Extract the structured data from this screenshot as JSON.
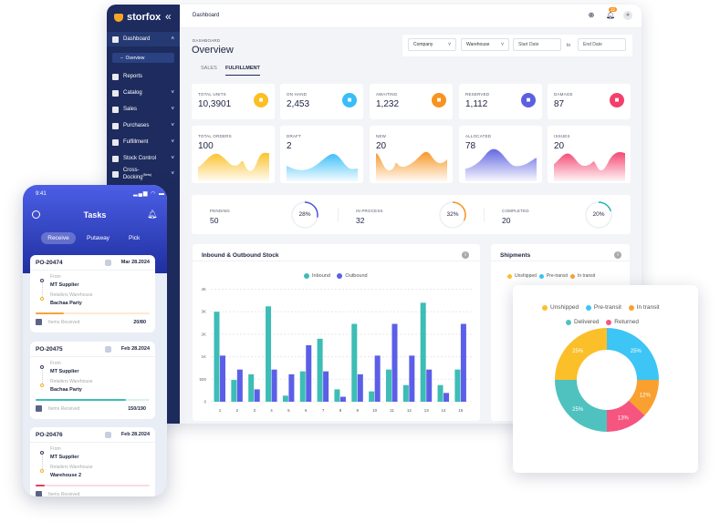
{
  "brand": "storfox",
  "sidebar": {
    "items": [
      {
        "label": "Dashboard"
      },
      {
        "label": "Reports"
      },
      {
        "label": "Catalog"
      },
      {
        "label": "Sales"
      },
      {
        "label": "Purchases"
      },
      {
        "label": "Fulfillment"
      },
      {
        "label": "Stock Control"
      },
      {
        "label": "Cross-Docking",
        "sup": "(Beta)"
      }
    ],
    "sub": "Overview"
  },
  "header": {
    "crumb": "Dashboard",
    "notif_count": "32"
  },
  "page": {
    "section": "DASHBOARD",
    "title": "Overview",
    "tabs": [
      "SALES",
      "FULFILLMENT"
    ],
    "active_tab": "FULFILLMENT"
  },
  "filters": {
    "company": "Company",
    "warehouse": "Warehouse",
    "start": "Start Date",
    "to": "to",
    "end": "End Date"
  },
  "kpis": [
    {
      "label": "TOTAL UNITS",
      "value": "10,3901",
      "color": "#fbbf24",
      "icon": "box-icon"
    },
    {
      "label": "ON HAND",
      "value": "2,453",
      "color": "#38bdf8",
      "icon": "hand-box-icon"
    },
    {
      "label": "AWAITING",
      "value": "1,232",
      "color": "#f7931e",
      "icon": "clock-icon"
    },
    {
      "label": "RESERVED",
      "value": "1,112",
      "color": "#5b5fe0",
      "icon": "reserved-icon"
    },
    {
      "label": "DAMAGE",
      "value": "87",
      "color": "#f43f6b",
      "icon": "damage-icon"
    }
  ],
  "orders": [
    {
      "label": "TOTAL ORDERS",
      "value": "100",
      "color": "#fbbf24"
    },
    {
      "label": "DRAFT",
      "value": "2",
      "color": "#38bdf8"
    },
    {
      "label": "NEW",
      "value": "20",
      "color": "#f7931e"
    },
    {
      "label": "ALLOCATED",
      "value": "78",
      "color": "#5b5fe0"
    },
    {
      "label": "ISSUES",
      "value": "20",
      "color": "#f43f6b"
    }
  ],
  "status": [
    {
      "label": "PENDING",
      "value": "50",
      "pct": "28%",
      "fraction": 0.28,
      "color": "#4a4fe0"
    },
    {
      "label": "IN PROCESS",
      "value": "32",
      "pct": "32%",
      "fraction": 0.32,
      "color": "#f7931e"
    },
    {
      "label": "COMPLETED",
      "value": "20",
      "pct": "20%",
      "fraction": 0.2,
      "color": "#22b5a8"
    }
  ],
  "chart_data": [
    {
      "type": "bar",
      "title": "Inbound & Outbound Stock",
      "categories": [
        "1",
        "2",
        "3",
        "4",
        "5",
        "6",
        "7",
        "8",
        "9",
        "10",
        "11",
        "12",
        "13",
        "14",
        "15"
      ],
      "series": [
        {
          "name": "Inbound",
          "color": "#3dbdb5",
          "values": [
            3000,
            485,
            610,
            3240,
            135,
            675,
            1800,
            275,
            2460,
            230,
            715,
            370,
            3400,
            370,
            715
          ]
        },
        {
          "name": "Outbound",
          "color": "#5b5fe8",
          "values": [
            1050,
            715,
            275,
            715,
            610,
            1510,
            675,
            110,
            610,
            1050,
            2460,
            1050,
            715,
            195,
            2460
          ]
        }
      ],
      "yticks": [
        {
          "v": 0,
          "label": "0"
        },
        {
          "v": 500,
          "label": "500"
        },
        {
          "v": 1000,
          "label": "1K"
        },
        {
          "v": 2000,
          "label": "2K"
        },
        {
          "v": 3000,
          "label": "3K"
        },
        {
          "v": 4000,
          "label": "4K"
        }
      ],
      "ylim": [
        0,
        4000
      ],
      "grid": true,
      "legend": "top-center"
    },
    {
      "type": "pie",
      "title": "Shipments",
      "slices": [
        {
          "name": "Pre-transit",
          "value": 25,
          "label": "25%",
          "color": "#3cc5f5"
        },
        {
          "name": "In transit",
          "value": 12,
          "label": "12%",
          "color": "#f9a030"
        },
        {
          "name": "Returned",
          "value": 13,
          "label": "13%",
          "color": "#f5557e"
        },
        {
          "name": "Delivered",
          "value": 25,
          "label": "25%",
          "color": "#4fc2c0"
        },
        {
          "name": "Unshipped",
          "value": 25,
          "label": "25%",
          "color": "#fbbf2a"
        }
      ],
      "legend_order": [
        "Unshipped",
        "Pre-transit",
        "In transit",
        "Delivered",
        "Returned"
      ]
    }
  ],
  "phone": {
    "time": "9:41",
    "title": "Tasks",
    "tabs": [
      "Receive",
      "Putaway",
      "Pick"
    ],
    "tasks": [
      {
        "po": "PO-20474",
        "date": "Mar 28.2024",
        "from_label": "From",
        "from": "MT Supplier",
        "to_label": "Retailers Warehouse",
        "to": "Bachaa Party",
        "items_label": "Items Received",
        "count": "20/80",
        "progress": 0.25,
        "color": "#f7a23a",
        "track": "#fde9cf"
      },
      {
        "po": "PO-20475",
        "date": "Feb 28.2024",
        "from_label": "From",
        "from": "MT Supplier",
        "to_label": "Retailers Warehouse",
        "to": "Bachaa Party",
        "items_label": "Items Received",
        "count": "150/190",
        "progress": 0.79,
        "color": "#3dbdb5",
        "track": "#d8f2f0"
      },
      {
        "po": "PO-20476",
        "date": "Feb 28.2024",
        "from_label": "From",
        "from": "MT Supplier",
        "to_label": "Retailers Warehouse",
        "to": "Warehouse 2",
        "items_label": "Items Received",
        "count": "",
        "progress": 0.08,
        "color": "#e0405f",
        "track": "#fadbe2"
      }
    ]
  }
}
